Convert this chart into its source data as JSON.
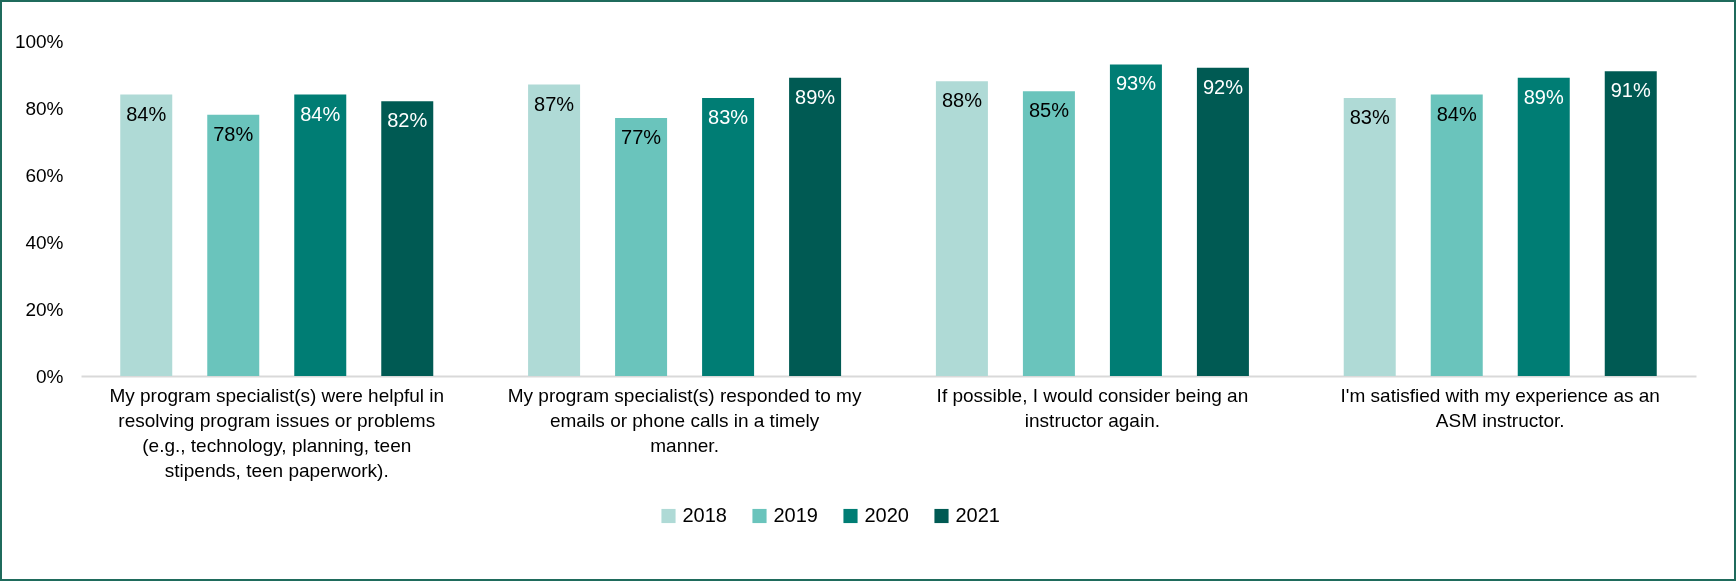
{
  "chart_data": {
    "type": "bar",
    "categories": [
      "My program specialist(s) were helpful in resolving program issues or problems (e.g., technology, planning, teen stipends, teen paperwork).",
      "My program specialist(s) responded to my emails or phone calls in a timely manner.",
      "If possible, I would consider being an instructor again.",
      "I'm satisfied with my experience as an ASM instructor."
    ],
    "series": [
      {
        "name": "2018",
        "color": "#afdad6",
        "values": [
          84,
          87,
          88,
          83
        ],
        "value_labels": [
          "84%",
          "87%",
          "88%",
          "83%"
        ]
      },
      {
        "name": "2019",
        "color": "#6ac4bc",
        "values": [
          78,
          77,
          85,
          84
        ],
        "value_labels": [
          "78%",
          "77%",
          "85%",
          "84%"
        ]
      },
      {
        "name": "2020",
        "color": "#007d74",
        "values": [
          84,
          83,
          93,
          89
        ],
        "value_labels": [
          "84%",
          "83%",
          "93%",
          "89%"
        ]
      },
      {
        "name": "2021",
        "color": "#005a53",
        "values": [
          82,
          89,
          92,
          91
        ],
        "value_labels": [
          "82%",
          "89%",
          "92%",
          "91%"
        ]
      }
    ],
    "ylim": [
      0,
      100
    ],
    "yticks": [
      {
        "value": 0,
        "label": "0%"
      },
      {
        "value": 20,
        "label": "20%"
      },
      {
        "value": 40,
        "label": "40%"
      },
      {
        "value": 60,
        "label": "60%"
      },
      {
        "value": 80,
        "label": "80%"
      },
      {
        "value": 100,
        "label": "100%"
      }
    ],
    "data_labels": true,
    "grid": false,
    "legend": "bottom"
  }
}
